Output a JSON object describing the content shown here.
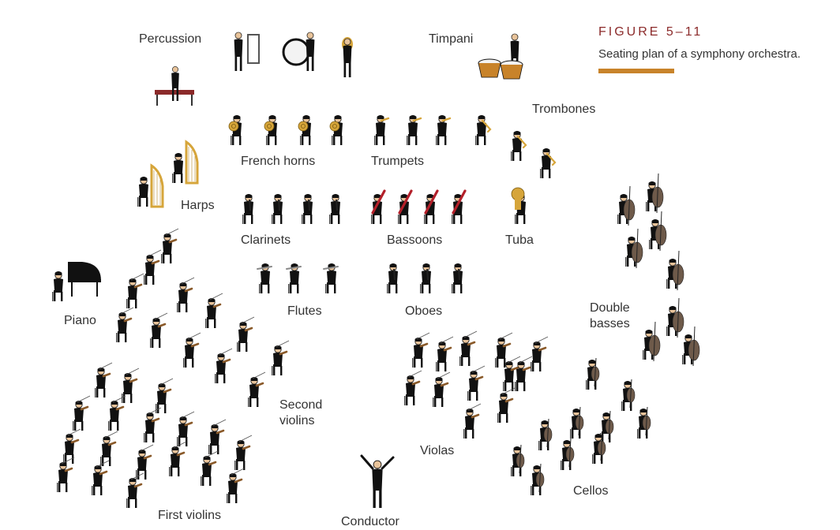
{
  "figure": {
    "title": "FIGURE 5–11",
    "caption": "Seating plan of a symphony orchestra.",
    "accent_color": "#8b2a2a",
    "rule_color": "#c8832a"
  },
  "sections": {
    "percussion": "Percussion",
    "timpani": "Timpani",
    "trombones": "Trombones",
    "french_horns": "French horns",
    "trumpets": "Trumpets",
    "harps": "Harps",
    "clarinets": "Clarinets",
    "bassoons": "Bassoons",
    "tuba": "Tuba",
    "flutes": "Flutes",
    "oboes": "Oboes",
    "piano": "Piano",
    "double_basses_1": "Double",
    "double_basses_2": "basses",
    "second_violins_1": "Second",
    "second_violins_2": "violins",
    "violas": "Violas",
    "cellos": "Cellos",
    "first_violins": "First violins",
    "conductor": "Conductor"
  },
  "colors": {
    "musician": "#111111",
    "instrument_brass": "#d6a53a",
    "instrument_wood": "#6e5a4a",
    "bassoon": "#b3202a",
    "skin": "#e8c39a",
    "hair_orange": "#d9782a"
  }
}
